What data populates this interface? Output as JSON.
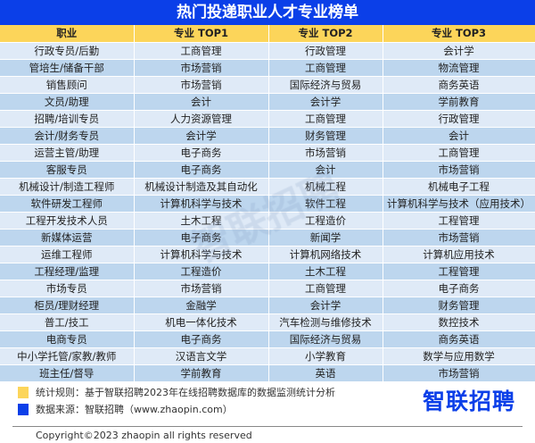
{
  "title": "热门投递职业人才专业榜单",
  "headers": [
    "职业",
    "专业 TOP1",
    "专业 TOP2",
    "专业 TOP3"
  ],
  "rows": [
    [
      "行政专员/后勤",
      "工商管理",
      "行政管理",
      "会计学"
    ],
    [
      "管培生/储备干部",
      "市场营销",
      "工商管理",
      "物流管理"
    ],
    [
      "销售顾问",
      "市场营销",
      "国际经济与贸易",
      "商务英语"
    ],
    [
      "文员/助理",
      "会计",
      "会计学",
      "学前教育"
    ],
    [
      "招聘/培训专员",
      "人力资源管理",
      "工商管理",
      "行政管理"
    ],
    [
      "会计/财务专员",
      "会计学",
      "财务管理",
      "会计"
    ],
    [
      "运营主管/助理",
      "电子商务",
      "市场营销",
      "工商管理"
    ],
    [
      "客服专员",
      "电子商务",
      "会计",
      "市场营销"
    ],
    [
      "机械设计/制造工程师",
      "机械设计制造及其自动化",
      "机械工程",
      "机械电子工程"
    ],
    [
      "软件研发工程师",
      "计算机科学与技术",
      "软件工程",
      "计算机科学与技术（应用技术）"
    ],
    [
      "工程开发技术人员",
      "土木工程",
      "工程造价",
      "工程管理"
    ],
    [
      "新媒体运营",
      "电子商务",
      "新闻学",
      "市场营销"
    ],
    [
      "运维工程师",
      "计算机科学与技术",
      "计算机网络技术",
      "计算机应用技术"
    ],
    [
      "工程经理/监理",
      "工程造价",
      "土木工程",
      "工程管理"
    ],
    [
      "市场专员",
      "市场营销",
      "工商管理",
      "电子商务"
    ],
    [
      "柜员/理财经理",
      "金融学",
      "会计学",
      "财务管理"
    ],
    [
      "普工/技工",
      "机电一体化技术",
      "汽车检测与维修技术",
      "数控技术"
    ],
    [
      "电商专员",
      "电子商务",
      "国际经济与贸易",
      "商务英语"
    ],
    [
      "中小学托管/家教/教师",
      "汉语言文学",
      "小学教育",
      "数学与应用数学"
    ],
    [
      "班主任/督导",
      "学前教育",
      "英语",
      "市场营销"
    ]
  ],
  "watermark": "智联招聘",
  "legend": [
    {
      "text": "统计规则：基于智联招聘2023年在线招聘数据库的数据监测统计分析",
      "color": "#fcd55a"
    },
    {
      "text": "数据来源：智联招聘（www.zhaopin.com）",
      "color": "#0b3fe8"
    }
  ],
  "logo": "智联招聘",
  "copyright": "Copyright©2023 zhaopin all rights reserved"
}
